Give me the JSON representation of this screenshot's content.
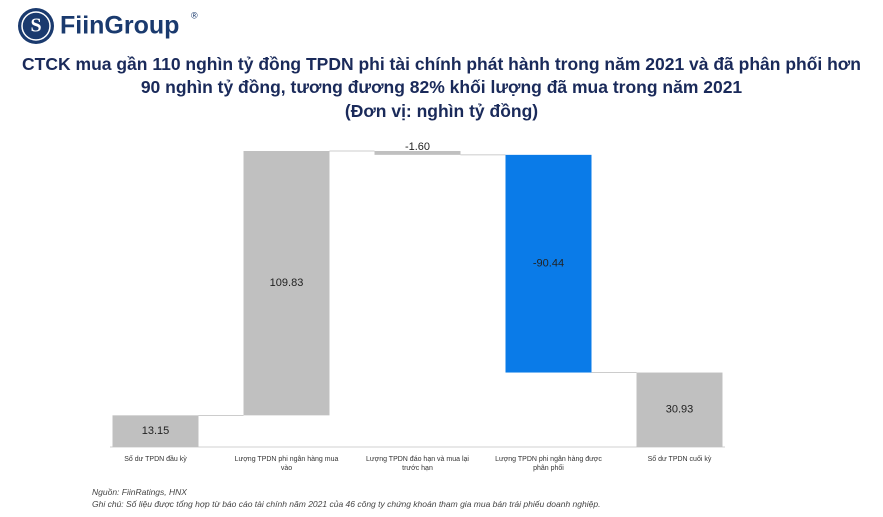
{
  "brand": {
    "name": "FiinGroup",
    "mark": "®"
  },
  "chart_data": {
    "type": "waterfall",
    "title": "CTCK mua gần 110 nghìn tỷ đồng TPDN phi tài chính phát hành trong năm 2021 và đã phân phối hơn 90 nghìn tỷ đồng, tương đương 82% khối lượng đã mua trong năm 2021",
    "subtitle": "(Đơn vị: nghìn tỷ đồng)",
    "categories": [
      "Số dư TPDN đầu kỳ",
      "Lượng TPDN phi ngân hàng mua vào",
      "Lượng TPDN đáo hạn và mua lại trước hạn",
      "Lượng TPDN phi ngân hàng được phân phối",
      "Số dư TPDN cuối kỳ"
    ],
    "values": [
      13.15,
      109.83,
      -1.6,
      -90.44,
      30.93
    ],
    "value_labels": [
      "13.15",
      "109.83",
      "-1.60",
      "-90.44",
      "30.93"
    ],
    "colors": [
      "#c0c0c0",
      "#c0c0c0",
      "#c0c0c0",
      "#0a7be8",
      "#c0c0c0"
    ],
    "source": "Nguồn: FiinRatings, HNX",
    "note": "Ghi chú: Số liệu được tổng hợp từ báo cáo tài chính năm 2021 của 46 công ty chứng khoán tham gia mua bán trái phiếu doanh nghiệp."
  }
}
